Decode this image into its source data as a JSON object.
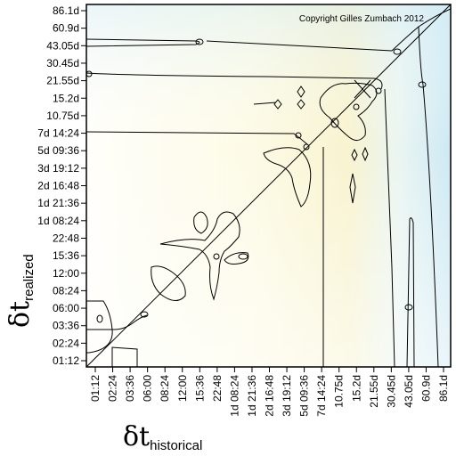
{
  "chart_data": {
    "type": "heatmap",
    "title": "",
    "copyright": "Copyright Gilles Zumbach 2012",
    "xlabel": {
      "symbol": "δt",
      "subscript": "historical"
    },
    "ylabel": {
      "symbol": "δt",
      "subscript": "realized"
    },
    "x_ticks": [
      "01:12",
      "02:24",
      "03:36",
      "06:00",
      "08:24",
      "12:00",
      "15:36",
      "22:48",
      "1d 08:24",
      "1d 21:36",
      "2d 16:48",
      "3d 19:12",
      "5d 09:36",
      "7d 14:24",
      "10.75d",
      "15.2d",
      "21.55d",
      "30.45d",
      "43.05d",
      "60.9d",
      "86.1d"
    ],
    "y_ticks": [
      "01:12",
      "02:24",
      "03:36",
      "06:00",
      "08:24",
      "12:00",
      "15:36",
      "22:48",
      "1d 08:24",
      "1d 21:36",
      "2d 16:48",
      "3d 19:12",
      "5d 09:36",
      "7d 14:24",
      "10.75d",
      "15.2d",
      "21.55d",
      "30.45d",
      "43.05d",
      "60.9d",
      "86.1d"
    ],
    "colorscale": [
      "#ffffff",
      "#fdfbe2",
      "#f9f4cc",
      "#e5f3f6",
      "#cfeaf4"
    ],
    "diagonal_line": true,
    "contour_color": "#000000"
  }
}
